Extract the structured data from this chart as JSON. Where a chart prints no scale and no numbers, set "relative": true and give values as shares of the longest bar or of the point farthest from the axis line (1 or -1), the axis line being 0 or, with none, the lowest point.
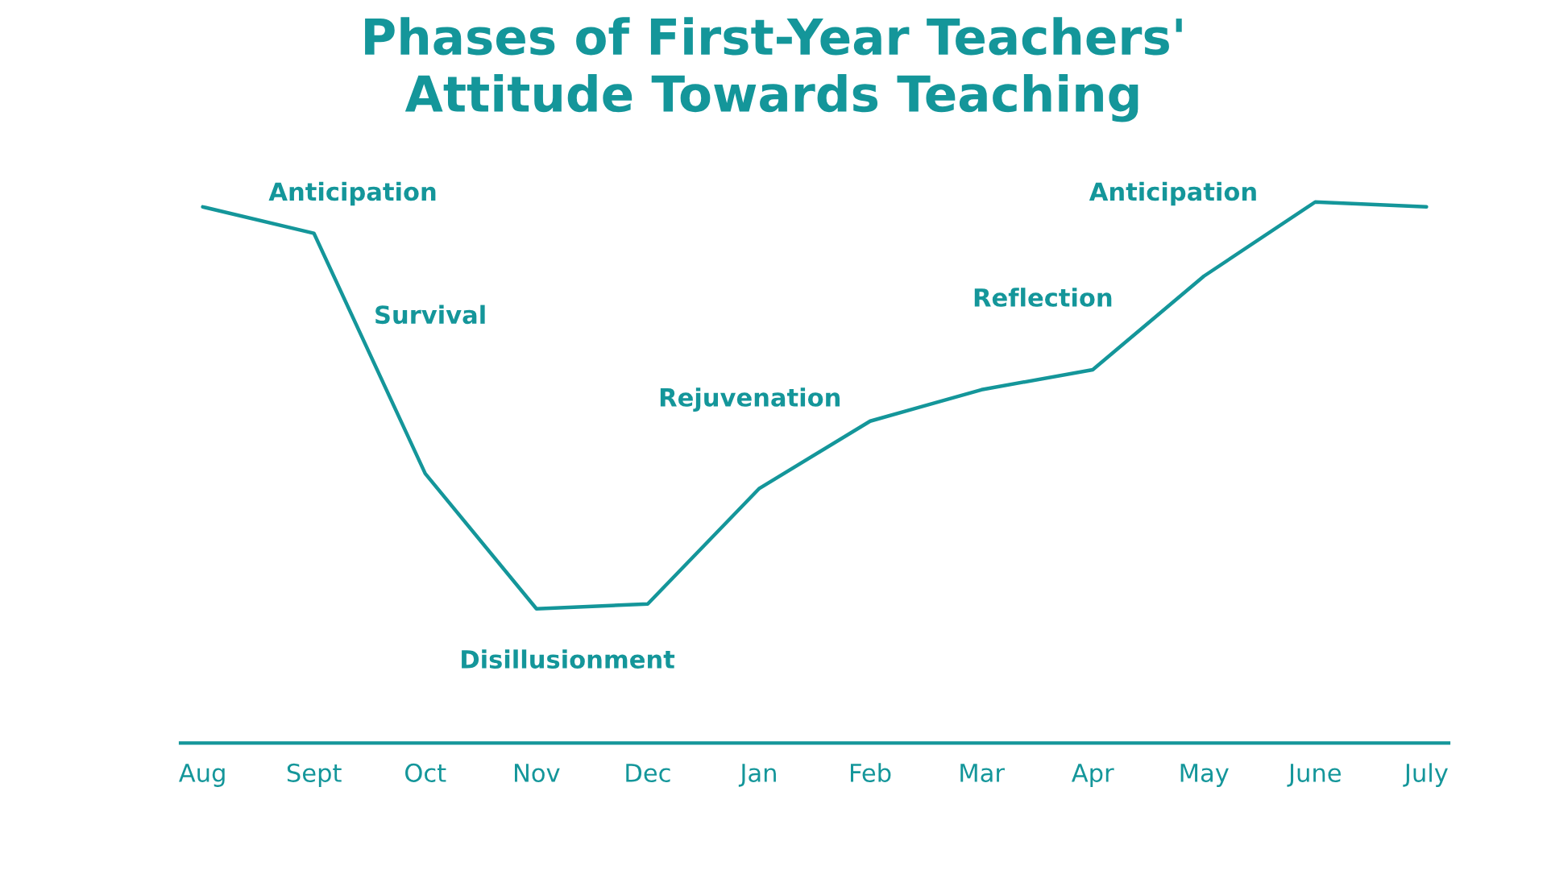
{
  "chart_data": {
    "type": "line",
    "title": "Phases of First-Year Teachers'\nAttitude Towards Teaching",
    "relative": true,
    "color": "#14969a",
    "grid": false,
    "legend": false,
    "marker": "none",
    "line_style": "solid",
    "tick_labels": "x",
    "categories": [
      "Aug",
      "Sept",
      "Oct",
      "Nov",
      "Dec",
      "Jan",
      "Feb",
      "Mar",
      "Apr",
      "May",
      "June",
      "July"
    ],
    "values": [
      0.991,
      0.942,
      0.498,
      0.248,
      0.257,
      0.47,
      0.595,
      0.653,
      0.69,
      0.863,
      1.0,
      0.991
    ],
    "annotations": [
      "Anticipation",
      "Survival",
      "Disillusionment",
      "Rejuvenation",
      "Reflection",
      "Anticipation"
    ]
  }
}
